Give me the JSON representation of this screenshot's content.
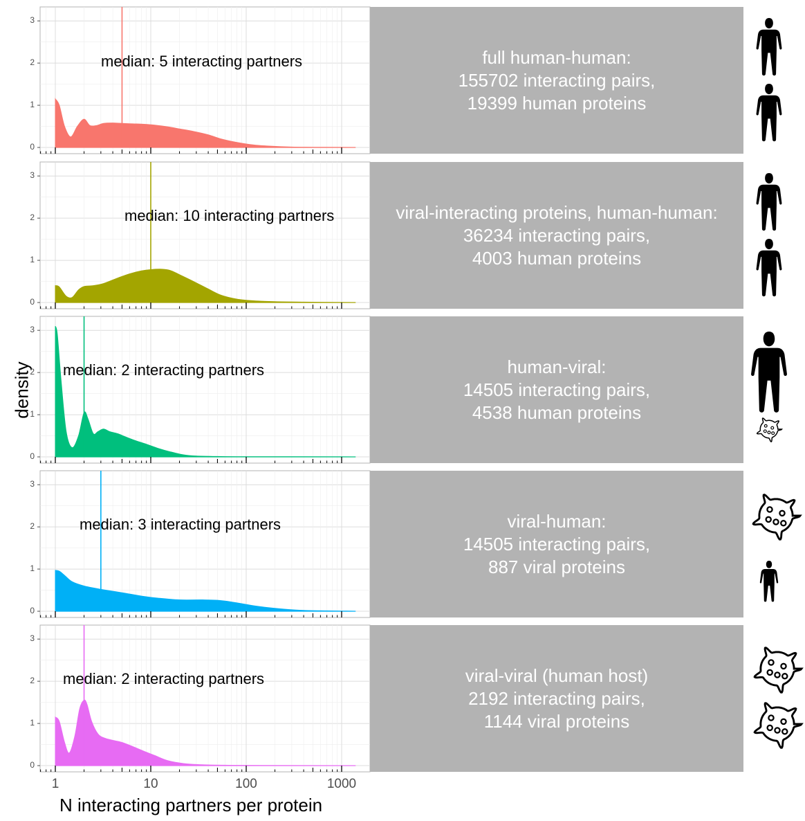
{
  "chart_data": {
    "type": "area",
    "subtype": "faceted density plot",
    "xlabel": "N interacting partners per protein",
    "ylabel": "density",
    "x_scale": "log10",
    "xlim": [
      0.8,
      1450
    ],
    "ylim": [
      0,
      3.2
    ],
    "x_ticks": [
      "1",
      "10",
      "100",
      "1000"
    ],
    "y_ticks": [
      "0",
      "1",
      "2",
      "3"
    ],
    "grid": true,
    "panels": [
      {
        "name": "human-human",
        "strip_label": [
          "full human-human:",
          "155702 interacting pairs,",
          "19399 human proteins"
        ],
        "median_label": "median: 5 interacting partners",
        "median": 5,
        "color": "#F8766D",
        "icons": [
          "human-icon",
          "human-icon"
        ],
        "density": {
          "x": [
            1,
            1.1,
            1.25,
            1.45,
            1.7,
            2.0,
            2.3,
            2.7,
            3.2,
            4,
            5,
            6.5,
            8.5,
            11,
            15,
            20,
            28,
            40,
            55,
            80,
            120,
            180,
            300,
            500,
            1000,
            1400
          ],
          "y": [
            1.15,
            1.0,
            0.5,
            0.25,
            0.5,
            0.67,
            0.52,
            0.52,
            0.57,
            0.58,
            0.57,
            0.56,
            0.55,
            0.53,
            0.49,
            0.44,
            0.38,
            0.3,
            0.2,
            0.12,
            0.06,
            0.03,
            0.01,
            0.005,
            0.002,
            0
          ]
        }
      },
      {
        "name": "viral-interacting human-human",
        "strip_label": [
          "viral-interacting proteins, human-human:",
          "36234 interacting pairs,",
          "4003 human proteins"
        ],
        "median_label": "median: 10 interacting partners",
        "median": 10,
        "color": "#A3A500",
        "icons": [
          "human-icon",
          "human-icon"
        ],
        "density": {
          "x": [
            1,
            1.1,
            1.3,
            1.5,
            1.75,
            2.0,
            2.5,
            3.2,
            4.5,
            6,
            8,
            10,
            13,
            16,
            20,
            28,
            40,
            55,
            80,
            120,
            200,
            400,
            1000,
            1400
          ],
          "y": [
            0.4,
            0.37,
            0.15,
            0.12,
            0.3,
            0.38,
            0.4,
            0.45,
            0.58,
            0.68,
            0.75,
            0.78,
            0.79,
            0.76,
            0.66,
            0.5,
            0.32,
            0.17,
            0.08,
            0.04,
            0.02,
            0.01,
            0.003,
            0
          ]
        }
      },
      {
        "name": "human-viral",
        "strip_label": [
          "human-viral:",
          "14505 interacting pairs,",
          "4538 human proteins"
        ],
        "median_label": "median: 2 interacting partners",
        "median": 2,
        "color": "#00BF7D",
        "icons": [
          "human-icon",
          "virus-icon"
        ],
        "density": {
          "x": [
            1,
            1.05,
            1.15,
            1.3,
            1.5,
            1.75,
            2.0,
            2.2,
            2.5,
            2.8,
            3.2,
            3.7,
            4.5,
            5.5,
            7,
            9,
            12,
            16,
            22,
            30,
            50,
            100,
            1000,
            1400
          ],
          "y": [
            3.1,
            2.9,
            1.8,
            0.6,
            0.22,
            0.5,
            1.05,
            0.9,
            0.55,
            0.6,
            0.66,
            0.6,
            0.55,
            0.47,
            0.38,
            0.3,
            0.2,
            0.12,
            0.05,
            0.02,
            0.01,
            0.005,
            0.002,
            0
          ]
        }
      },
      {
        "name": "viral-human",
        "strip_label": [
          "viral-human:",
          "14505 interacting pairs,",
          "887 viral proteins"
        ],
        "median_label": "median: 3 interacting partners",
        "median": 3,
        "color": "#00B0F6",
        "icons": [
          "virus-icon",
          "human-icon"
        ],
        "density": {
          "x": [
            1,
            1.1,
            1.25,
            1.5,
            2.0,
            3,
            5,
            8,
            12,
            20,
            35,
            50,
            70,
            100,
            150,
            250,
            400,
            700,
            1000,
            1400
          ],
          "y": [
            0.97,
            0.95,
            0.85,
            0.7,
            0.6,
            0.52,
            0.44,
            0.36,
            0.31,
            0.27,
            0.27,
            0.26,
            0.22,
            0.16,
            0.1,
            0.05,
            0.02,
            0.01,
            0.005,
            0
          ]
        }
      },
      {
        "name": "viral-viral",
        "strip_label": [
          "viral-viral (human host)",
          "2192 interacting pairs,",
          "1144 viral proteins"
        ],
        "median_label": "median: 2 interacting partners",
        "median": 2,
        "color": "#E76BF3",
        "icons": [
          "virus-icon",
          "virus-icon"
        ],
        "density": {
          "x": [
            1,
            1.1,
            1.25,
            1.4,
            1.6,
            1.8,
            2.0,
            2.15,
            2.4,
            2.8,
            3.3,
            4,
            5,
            6.5,
            8.5,
            11,
            15,
            22,
            35,
            60,
            150,
            1000,
            1400
          ],
          "y": [
            1.15,
            1.05,
            0.55,
            0.3,
            0.7,
            1.35,
            1.55,
            1.45,
            1.05,
            0.75,
            0.65,
            0.6,
            0.55,
            0.45,
            0.34,
            0.24,
            0.12,
            0.05,
            0.02,
            0.01,
            0.005,
            0.001,
            0
          ]
        }
      }
    ]
  }
}
